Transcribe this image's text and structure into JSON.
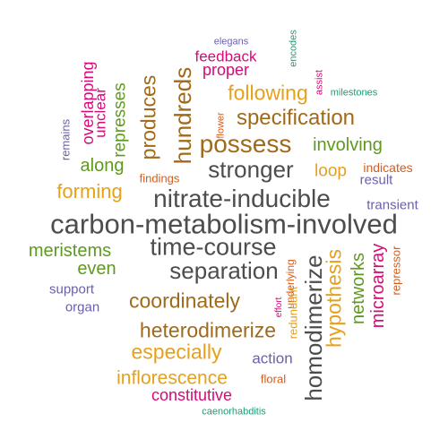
{
  "palette": {
    "dark_gray": "#4d4d4d",
    "brown": "#a06a1a",
    "gold": "#e6a11b",
    "green": "#5e9a1e",
    "magenta": "#d60a78",
    "orange": "#d65c1a",
    "teal": "#1b9e77",
    "slate_blue": "#6a62a8"
  },
  "words": [
    {
      "text": "carbon-metabolism-involved",
      "color": "#4d4d4d"
    },
    {
      "text": "nitrate-inducible",
      "color": "#4d4d4d"
    },
    {
      "text": "time-course",
      "color": "#4d4d4d"
    },
    {
      "text": "separation",
      "color": "#4d4d4d"
    },
    {
      "text": "coordinately",
      "color": "#a06a1a"
    },
    {
      "text": "heterodimerize",
      "color": "#a06a1a"
    },
    {
      "text": "homodimerize",
      "color": "#4d4d4d"
    },
    {
      "text": "specification",
      "color": "#a06a1a"
    },
    {
      "text": "following",
      "color": "#e6a11b"
    },
    {
      "text": "possess",
      "color": "#a06a1a"
    },
    {
      "text": "stronger",
      "color": "#4d4d4d"
    },
    {
      "text": "hundreds",
      "color": "#a06a1a"
    },
    {
      "text": "produces",
      "color": "#a06a1a"
    },
    {
      "text": "represses",
      "color": "#5e9a1e"
    },
    {
      "text": "unclear",
      "color": "#d60a78"
    },
    {
      "text": "overlapping",
      "color": "#d60a78"
    },
    {
      "text": "remains",
      "color": "#6a62a8"
    },
    {
      "text": "feedback",
      "color": "#d60a78"
    },
    {
      "text": "proper",
      "color": "#d60a78"
    },
    {
      "text": "elegans",
      "color": "#6a62a8"
    },
    {
      "text": "encodes",
      "color": "#1b9e77"
    },
    {
      "text": "assist",
      "color": "#d60a78"
    },
    {
      "text": "milestones",
      "color": "#1b9e77"
    },
    {
      "text": "flower",
      "color": "#d65c1a"
    },
    {
      "text": "findings",
      "color": "#d65c1a"
    },
    {
      "text": "along",
      "color": "#5e9a1e"
    },
    {
      "text": "forming",
      "color": "#e6a11b"
    },
    {
      "text": "involving",
      "color": "#5e9a1e"
    },
    {
      "text": "loop",
      "color": "#e6a11b"
    },
    {
      "text": "indicates",
      "color": "#d65c1a"
    },
    {
      "text": "result",
      "color": "#6a62a8"
    },
    {
      "text": "transient",
      "color": "#6a62a8"
    },
    {
      "text": "meristems",
      "color": "#5e9a1e"
    },
    {
      "text": "even",
      "color": "#5e9a1e"
    },
    {
      "text": "support",
      "color": "#6a62a8"
    },
    {
      "text": "organ",
      "color": "#6a62a8"
    },
    {
      "text": "hypothesis",
      "color": "#e6a11b"
    },
    {
      "text": "networks",
      "color": "#5e9a1e"
    },
    {
      "text": "microarray",
      "color": "#d60a78"
    },
    {
      "text": "repressor",
      "color": "#d65c1a"
    },
    {
      "text": "underlying",
      "color": "#d65c1a"
    },
    {
      "text": "effort",
      "color": "#d60a78"
    },
    {
      "text": "redundant",
      "color": "#e6a11b"
    },
    {
      "text": "especially",
      "color": "#e6a11b"
    },
    {
      "text": "inflorescence",
      "color": "#e6a11b"
    },
    {
      "text": "action",
      "color": "#6a62a8"
    },
    {
      "text": "floral",
      "color": "#d65c1a"
    },
    {
      "text": "constitutive",
      "color": "#d60a78"
    },
    {
      "text": "caenorhabditis",
      "color": "#1b9e77"
    }
  ]
}
